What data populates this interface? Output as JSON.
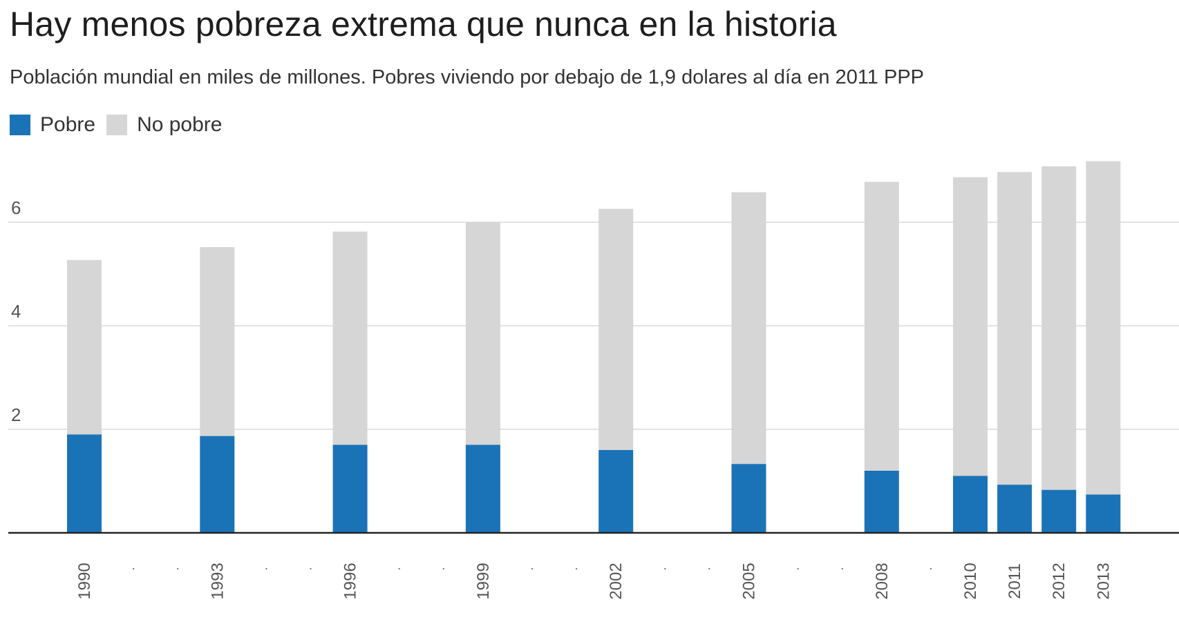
{
  "chart_data": {
    "type": "bar",
    "stacked": true,
    "title": "Hay menos pobreza extrema que nunca en la historia",
    "subtitle": "Población mundial en miles de millones. Pobres viviendo por debajo de 1,9 dolares al día en 2011 PPP",
    "x": [
      1990,
      1993,
      1996,
      1999,
      2002,
      2005,
      2008,
      2010,
      2011,
      2012,
      2013
    ],
    "categories": [
      "1990",
      "1993",
      "1996",
      "1999",
      "2002",
      "2005",
      "2008",
      "2010",
      "2011",
      "2012",
      "2013"
    ],
    "series": [
      {
        "name": "Pobre",
        "color": "#1a73b6",
        "values": [
          1.9,
          1.87,
          1.7,
          1.7,
          1.6,
          1.33,
          1.2,
          1.1,
          0.93,
          0.83,
          0.74
        ]
      },
      {
        "name": "No pobre",
        "color": "#d6d6d6",
        "values": [
          3.37,
          3.65,
          4.12,
          4.3,
          4.66,
          5.25,
          5.58,
          5.77,
          6.04,
          6.25,
          6.44
        ]
      }
    ],
    "legend": [
      {
        "name": "Pobre",
        "color": "#1a73b6"
      },
      {
        "name": "No pobre",
        "color": "#d6d6d6"
      }
    ],
    "yticks": [
      "2",
      "4",
      "6"
    ],
    "ytick_values": [
      2,
      4,
      6
    ],
    "ylim": [
      0,
      7.5
    ],
    "xlim": [
      1989,
      2014.5
    ],
    "grid": true,
    "xlabel": "",
    "ylabel": ""
  }
}
